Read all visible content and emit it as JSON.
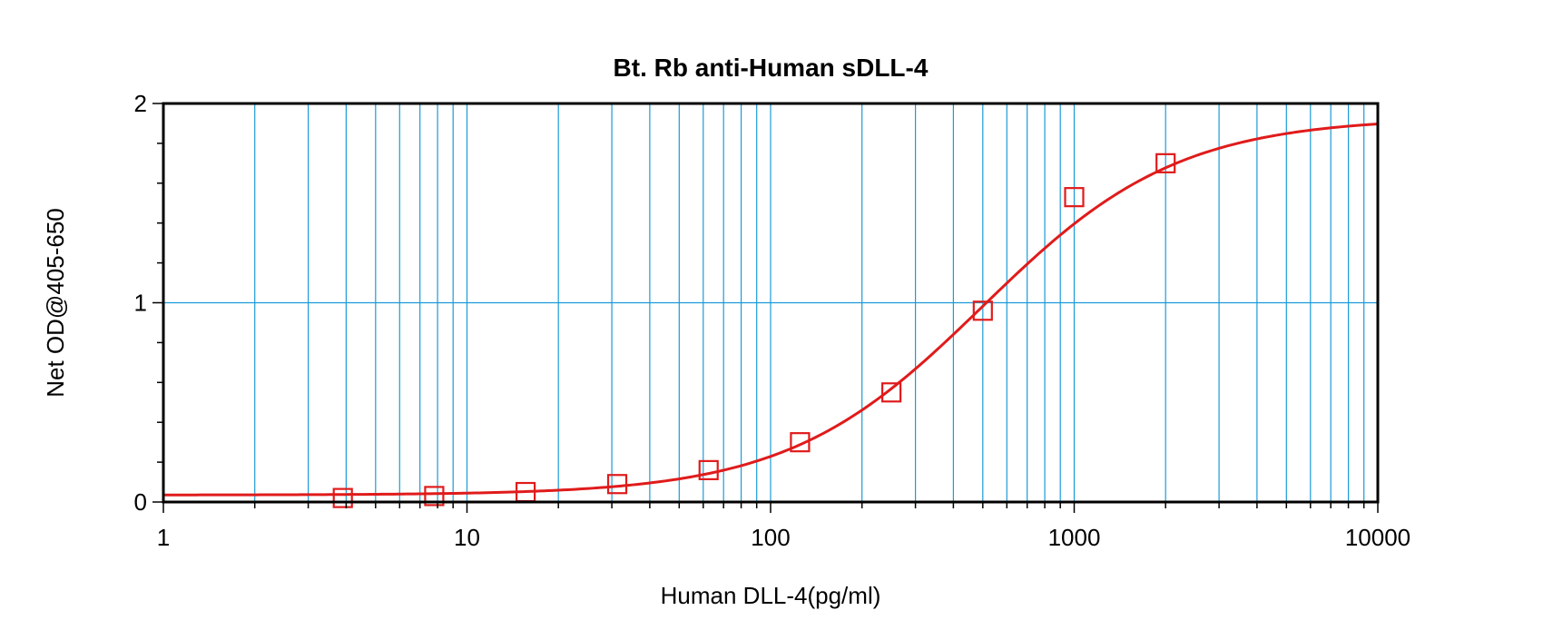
{
  "chart_data": {
    "type": "scatter",
    "title": "Bt. Rb anti-Human sDLL-4",
    "xlabel": "Human DLL-4(pg/ml)",
    "ylabel": "Net OD@405-650",
    "x_scale": "log",
    "xlim": [
      1,
      10000
    ],
    "ylim": [
      0,
      2
    ],
    "grid": true,
    "x_tick_labels": [
      "1",
      "10",
      "100",
      "1000",
      "10000"
    ],
    "y_tick_labels": [
      "0",
      "1",
      "2"
    ],
    "series": [
      {
        "points": [
          {
            "x": 3.9,
            "y": 0.02
          },
          {
            "x": 7.8,
            "y": 0.03
          },
          {
            "x": 15.6,
            "y": 0.05
          },
          {
            "x": 31.25,
            "y": 0.09
          },
          {
            "x": 62.5,
            "y": 0.16
          },
          {
            "x": 125,
            "y": 0.3
          },
          {
            "x": 250,
            "y": 0.55
          },
          {
            "x": 500,
            "y": 0.96
          },
          {
            "x": 1000,
            "y": 1.53
          },
          {
            "x": 2000,
            "y": 1.7
          }
        ],
        "marker": "open-square",
        "color": "#e01b1b"
      }
    ],
    "fit_curve": {
      "model": "4PL",
      "bottom": 0.035,
      "top": 1.93,
      "ec50": 500,
      "hill": 1.35,
      "color": "#e01b1b"
    },
    "colors": {
      "grid": "#1a9bd7",
      "frame": "#000000"
    }
  }
}
